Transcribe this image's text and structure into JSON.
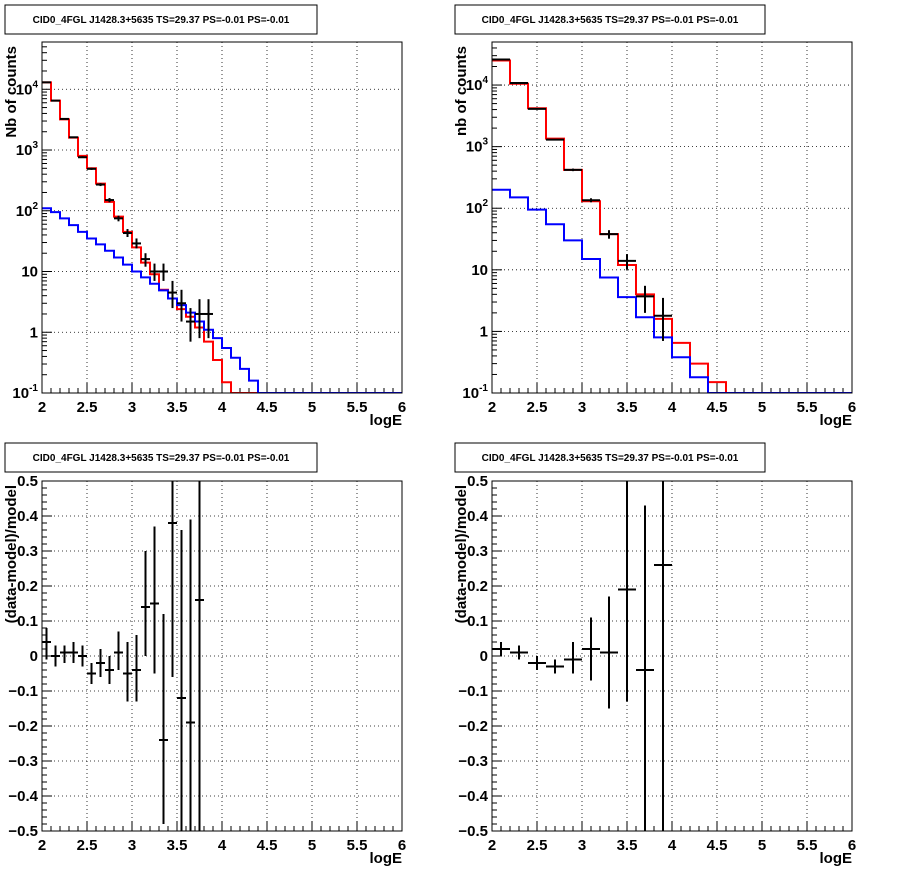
{
  "chart_data": [
    {
      "type": "line",
      "panel": "top-left",
      "title": "CID0_4FGL J1428.3+5635 TS=29.37 PS=-0.01 PS=-0.01",
      "xlabel": "logE",
      "ylabel": "Nb of counts",
      "yscale": "log",
      "xlim": [
        2,
        6
      ],
      "ylim": [
        0.1,
        60000
      ],
      "xticks": [
        "2",
        "2.5",
        "3",
        "3.5",
        "4",
        "4.5",
        "5",
        "5.5",
        "6"
      ],
      "yticks": [
        {
          "value": 0.1,
          "label": "10",
          "sup": "-1"
        },
        {
          "value": 1,
          "label": "1",
          "sup": ""
        },
        {
          "value": 10,
          "label": "10",
          "sup": ""
        },
        {
          "value": 100,
          "label": "10",
          "sup": "2"
        },
        {
          "value": 1000,
          "label": "10",
          "sup": "3"
        },
        {
          "value": 10000,
          "label": "10",
          "sup": "4"
        }
      ],
      "grid": true,
      "series": [
        {
          "kind": "hist",
          "color": "#ff0000",
          "binwidth": 0.1,
          "edges_start": 2.0,
          "values": [
            13000,
            6500,
            3200,
            1600,
            800,
            500,
            280,
            140,
            80,
            45,
            25,
            14,
            9,
            5,
            3.6,
            2.4,
            1.8,
            1.2,
            0.7,
            0.35,
            0.15,
            0.1,
            0.1,
            0.1,
            0.1,
            0.1,
            0.1,
            0.1,
            0.1,
            0.1,
            0.1,
            0.1,
            0.1,
            0.1,
            0.1,
            0.1,
            0.1,
            0.1,
            0.1,
            0.1
          ]
        },
        {
          "kind": "hist",
          "color": "#0000ff",
          "binwidth": 0.1,
          "edges_start": 2.0,
          "values": [
            110,
            95,
            75,
            58,
            45,
            35,
            28,
            22,
            17,
            13,
            10,
            8,
            6.3,
            4.9,
            3.6,
            2.8,
            2.1,
            1.5,
            1.1,
            0.8,
            0.55,
            0.38,
            0.25,
            0.16,
            0.1,
            0.1,
            0.1,
            0.1,
            0.1,
            0.1,
            0.1,
            0.1,
            0.1,
            0.1,
            0.1,
            0.1,
            0.1,
            0.1,
            0.1,
            0.1
          ]
        },
        {
          "kind": "points",
          "color": "#000000",
          "xerr": 0.05,
          "x": [
            2.05,
            2.15,
            2.25,
            2.35,
            2.45,
            2.55,
            2.65,
            2.75,
            2.85,
            2.95,
            3.05,
            3.15,
            3.25,
            3.35,
            3.45,
            3.55,
            3.65,
            3.75,
            3.85
          ],
          "y": [
            13000,
            6500,
            3250,
            1620,
            760,
            490,
            270,
            150,
            75,
            43,
            29,
            16,
            10,
            10,
            4.5,
            3,
            1.5,
            2,
            2
          ],
          "ylo": [
            12800,
            6400,
            3200,
            1580,
            740,
            470,
            255,
            138,
            67,
            37,
            24,
            12,
            7,
            7,
            2.5,
            1.5,
            0.7,
            0.8,
            0.8
          ],
          "yhi": [
            13200,
            6600,
            3300,
            1660,
            790,
            510,
            285,
            162,
            83,
            50,
            35,
            20,
            13.5,
            13.5,
            7,
            5,
            2.5,
            3.5,
            3.5
          ]
        }
      ]
    },
    {
      "type": "line",
      "panel": "top-right",
      "title": "CID0_4FGL J1428.3+5635 TS=29.37 PS=-0.01 PS=-0.01",
      "xlabel": "logE",
      "ylabel": "nb of counts",
      "yscale": "log",
      "xlim": [
        2,
        6
      ],
      "ylim": [
        0.1,
        50000
      ],
      "xticks": [
        "2",
        "2.5",
        "3",
        "3.5",
        "4",
        "4.5",
        "5",
        "5.5",
        "6"
      ],
      "yticks": [
        {
          "value": 0.1,
          "label": "10",
          "sup": "-1"
        },
        {
          "value": 1,
          "label": "1",
          "sup": ""
        },
        {
          "value": 10,
          "label": "10",
          "sup": ""
        },
        {
          "value": 100,
          "label": "10",
          "sup": "2"
        },
        {
          "value": 1000,
          "label": "10",
          "sup": "3"
        },
        {
          "value": 10000,
          "label": "10",
          "sup": "4"
        }
      ],
      "grid": true,
      "series": [
        {
          "kind": "hist",
          "color": "#ff0000",
          "binwidth": 0.2,
          "edges_start": 2.0,
          "values": [
            25000,
            10500,
            4200,
            1350,
            420,
            130,
            38,
            12,
            4,
            1.6,
            0.65,
            0.3,
            0.15,
            0.1,
            0.1,
            0.1,
            0.1,
            0.1,
            0.1,
            0.1
          ]
        },
        {
          "kind": "hist",
          "color": "#0000ff",
          "binwidth": 0.2,
          "edges_start": 2.0,
          "values": [
            200,
            150,
            95,
            55,
            30,
            15,
            7.5,
            3.6,
            1.7,
            0.8,
            0.38,
            0.18,
            0.1,
            0.1,
            0.1,
            0.1,
            0.1,
            0.1,
            0.1,
            0.1
          ]
        },
        {
          "kind": "points",
          "color": "#000000",
          "xerr": 0.1,
          "x": [
            2.1,
            2.3,
            2.5,
            2.7,
            2.9,
            3.1,
            3.3,
            3.5,
            3.7,
            3.9
          ],
          "y": [
            26000,
            10800,
            4100,
            1300,
            420,
            135,
            38,
            14,
            3.7,
            1.8
          ],
          "ylo": [
            25700,
            10600,
            4000,
            1270,
            400,
            125,
            32,
            10,
            2,
            0.7
          ],
          "yhi": [
            26300,
            11000,
            4200,
            1330,
            440,
            145,
            44,
            18,
            5.5,
            3.5
          ]
        }
      ]
    },
    {
      "type": "scatter",
      "panel": "bottom-left",
      "title": "CID0_4FGL J1428.3+5635 TS=29.37 PS=-0.01 PS=-0.01",
      "xlabel": "logE",
      "ylabel": "(data-model)/model",
      "yscale": "linear",
      "xlim": [
        2,
        6
      ],
      "ylim": [
        -0.5,
        0.5
      ],
      "xticks": [
        "2",
        "2.5",
        "3",
        "3.5",
        "4",
        "4.5",
        "5",
        "5.5",
        "6"
      ],
      "yticks": [
        {
          "value": -0.5,
          "label": "−0.5",
          "sup": ""
        },
        {
          "value": -0.4,
          "label": "−0.4",
          "sup": ""
        },
        {
          "value": -0.3,
          "label": "−0.3",
          "sup": ""
        },
        {
          "value": -0.2,
          "label": "−0.2",
          "sup": ""
        },
        {
          "value": -0.1,
          "label": "−0.1",
          "sup": ""
        },
        {
          "value": 0,
          "label": "0",
          "sup": ""
        },
        {
          "value": 0.1,
          "label": "0.1",
          "sup": ""
        },
        {
          "value": 0.2,
          "label": "0.2",
          "sup": ""
        },
        {
          "value": 0.3,
          "label": "0.3",
          "sup": ""
        },
        {
          "value": 0.4,
          "label": "0.4",
          "sup": ""
        },
        {
          "value": 0.5,
          "label": "0.5",
          "sup": ""
        }
      ],
      "grid": true,
      "series": [
        {
          "kind": "points",
          "color": "#000000",
          "xerr": 0.05,
          "x": [
            2.05,
            2.15,
            2.25,
            2.35,
            2.45,
            2.55,
            2.65,
            2.75,
            2.85,
            2.95,
            3.05,
            3.15,
            3.25,
            3.35,
            3.45,
            3.55,
            3.65,
            3.75
          ],
          "y": [
            0.04,
            0.0,
            0.01,
            0.01,
            0.0,
            -0.05,
            -0.02,
            -0.04,
            0.01,
            -0.05,
            -0.04,
            0.14,
            0.15,
            -0.24,
            0.38,
            -0.12,
            -0.19,
            0.16
          ],
          "ylo": [
            -0.01,
            -0.03,
            -0.02,
            -0.02,
            -0.03,
            -0.08,
            -0.06,
            -0.08,
            -0.04,
            -0.13,
            -0.13,
            0.0,
            -0.05,
            -0.48,
            -0.06,
            -0.5,
            -0.5,
            -0.5
          ],
          "yhi": [
            0.08,
            0.03,
            0.03,
            0.04,
            0.03,
            -0.02,
            0.02,
            0.0,
            0.07,
            0.04,
            0.06,
            0.3,
            0.37,
            0.12,
            0.5,
            0.36,
            0.39,
            0.5
          ]
        }
      ]
    },
    {
      "type": "scatter",
      "panel": "bottom-right",
      "title": "CID0_4FGL J1428.3+5635 TS=29.37 PS=-0.01 PS=-0.01",
      "xlabel": "logE",
      "ylabel": "(data-model)/model",
      "yscale": "linear",
      "xlim": [
        2,
        6
      ],
      "ylim": [
        -0.5,
        0.5
      ],
      "xticks": [
        "2",
        "2.5",
        "3",
        "3.5",
        "4",
        "4.5",
        "5",
        "5.5",
        "6"
      ],
      "yticks": [
        {
          "value": -0.5,
          "label": "−0.5",
          "sup": ""
        },
        {
          "value": -0.4,
          "label": "−0.4",
          "sup": ""
        },
        {
          "value": -0.3,
          "label": "−0.3",
          "sup": ""
        },
        {
          "value": -0.2,
          "label": "−0.2",
          "sup": ""
        },
        {
          "value": -0.1,
          "label": "−0.1",
          "sup": ""
        },
        {
          "value": 0,
          "label": "0",
          "sup": ""
        },
        {
          "value": 0.1,
          "label": "0.1",
          "sup": ""
        },
        {
          "value": 0.2,
          "label": "0.2",
          "sup": ""
        },
        {
          "value": 0.3,
          "label": "0.3",
          "sup": ""
        },
        {
          "value": 0.4,
          "label": "0.4",
          "sup": ""
        },
        {
          "value": 0.5,
          "label": "0.5",
          "sup": ""
        }
      ],
      "grid": true,
      "series": [
        {
          "kind": "points",
          "color": "#000000",
          "xerr": 0.1,
          "x": [
            2.1,
            2.3,
            2.5,
            2.7,
            2.9,
            3.1,
            3.3,
            3.5,
            3.7,
            3.9
          ],
          "y": [
            0.02,
            0.01,
            -0.02,
            -0.03,
            -0.01,
            0.02,
            0.01,
            0.19,
            -0.04,
            0.26
          ],
          "ylo": [
            0.0,
            -0.01,
            -0.04,
            -0.05,
            -0.05,
            -0.07,
            -0.15,
            -0.13,
            -0.5,
            -0.5
          ],
          "yhi": [
            0.04,
            0.03,
            0.0,
            -0.01,
            0.04,
            0.11,
            0.17,
            0.5,
            0.43,
            0.5
          ]
        }
      ]
    }
  ]
}
